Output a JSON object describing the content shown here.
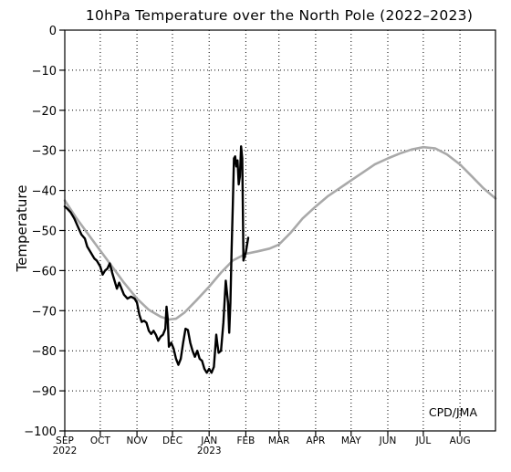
{
  "chart_data": {
    "type": "line",
    "title": "10hPa Temperature over the North Pole (2022–2023)",
    "ylabel": "Temperature",
    "xlabel": "",
    "credit": "CPD/JMA",
    "ylim": [
      -100,
      0
    ],
    "yticks": [
      0,
      -10,
      -20,
      -30,
      -40,
      -50,
      -60,
      -70,
      -80,
      -90,
      -100
    ],
    "ytick_labels": [
      "0",
      "−10",
      "−20",
      "−30",
      "−40",
      "−50",
      "−60",
      "−70",
      "−80",
      "−90",
      "−100"
    ],
    "xlim": [
      "2022-09-01",
      "2023-08-31"
    ],
    "x_ticks": [
      {
        "date": "2022-09-01",
        "label": "SEP",
        "sublabel": "2022"
      },
      {
        "date": "2022-10-01",
        "label": "OCT",
        "sublabel": ""
      },
      {
        "date": "2022-11-01",
        "label": "NOV",
        "sublabel": ""
      },
      {
        "date": "2022-12-01",
        "label": "DEC",
        "sublabel": ""
      },
      {
        "date": "2023-01-01",
        "label": "JAN",
        "sublabel": "2023"
      },
      {
        "date": "2023-02-01",
        "label": "FEB",
        "sublabel": ""
      },
      {
        "date": "2023-03-01",
        "label": "MAR",
        "sublabel": ""
      },
      {
        "date": "2023-04-01",
        "label": "APR",
        "sublabel": ""
      },
      {
        "date": "2023-05-01",
        "label": "MAY",
        "sublabel": ""
      },
      {
        "date": "2023-06-01",
        "label": "JUN",
        "sublabel": ""
      },
      {
        "date": "2023-07-01",
        "label": "JUL",
        "sublabel": ""
      },
      {
        "date": "2023-08-01",
        "label": "AUG",
        "sublabel": ""
      }
    ],
    "grid": true,
    "series": [
      {
        "color": "#a9a9a9",
        "points": [
          [
            "2022-09-01",
            -42.5
          ],
          [
            "2022-09-11",
            -47
          ],
          [
            "2022-09-21",
            -51
          ],
          [
            "2022-10-01",
            -55
          ],
          [
            "2022-10-11",
            -59
          ],
          [
            "2022-10-21",
            -63
          ],
          [
            "2022-11-01",
            -67
          ],
          [
            "2022-11-11",
            -69.8
          ],
          [
            "2022-11-21",
            -71.5
          ],
          [
            "2022-11-28",
            -72.2
          ],
          [
            "2022-12-04",
            -72
          ],
          [
            "2022-12-11",
            -70.5
          ],
          [
            "2022-12-21",
            -67.5
          ],
          [
            "2023-01-01",
            -64
          ],
          [
            "2023-01-11",
            -60.5
          ],
          [
            "2023-01-21",
            -57.5
          ],
          [
            "2023-02-01",
            -55.8
          ],
          [
            "2023-02-11",
            -55.2
          ],
          [
            "2023-02-21",
            -54.5
          ],
          [
            "2023-03-01",
            -53.5
          ],
          [
            "2023-03-11",
            -50.5
          ],
          [
            "2023-03-21",
            -47
          ],
          [
            "2023-04-01",
            -44
          ],
          [
            "2023-04-11",
            -41.5
          ],
          [
            "2023-04-21",
            -39.5
          ],
          [
            "2023-05-01",
            -37.5
          ],
          [
            "2023-05-11",
            -35.5
          ],
          [
            "2023-05-21",
            -33.5
          ],
          [
            "2023-06-01",
            -32
          ],
          [
            "2023-06-11",
            -30.8
          ],
          [
            "2023-06-21",
            -29.8
          ],
          [
            "2023-07-01",
            -29.2
          ],
          [
            "2023-07-11",
            -29.5
          ],
          [
            "2023-07-21",
            -31
          ],
          [
            "2023-08-01",
            -33.5
          ],
          [
            "2023-08-11",
            -36.5
          ],
          [
            "2023-08-21",
            -39.5
          ],
          [
            "2023-08-31",
            -42
          ]
        ]
      },
      {
        "color": "#000000",
        "points": [
          [
            "2022-09-01",
            -44
          ],
          [
            "2022-09-03",
            -44.5
          ],
          [
            "2022-09-06",
            -45.5
          ],
          [
            "2022-09-09",
            -47
          ],
          [
            "2022-09-12",
            -49
          ],
          [
            "2022-09-15",
            -51
          ],
          [
            "2022-09-18",
            -52
          ],
          [
            "2022-09-20",
            -54
          ],
          [
            "2022-09-23",
            -55.5
          ],
          [
            "2022-09-26",
            -57
          ],
          [
            "2022-09-28",
            -57.5
          ],
          [
            "2022-10-01",
            -59
          ],
          [
            "2022-10-03",
            -61
          ],
          [
            "2022-10-05",
            -60
          ],
          [
            "2022-10-07",
            -59.5
          ],
          [
            "2022-10-09",
            -58.2
          ],
          [
            "2022-10-11",
            -60.5
          ],
          [
            "2022-10-13",
            -62.5
          ],
          [
            "2022-10-15",
            -64.5
          ],
          [
            "2022-10-17",
            -63
          ],
          [
            "2022-10-19",
            -64.5
          ],
          [
            "2022-10-21",
            -66
          ],
          [
            "2022-10-24",
            -67
          ],
          [
            "2022-10-27",
            -66.5
          ],
          [
            "2022-10-30",
            -67
          ],
          [
            "2022-11-01",
            -68
          ],
          [
            "2022-11-03",
            -71
          ],
          [
            "2022-11-05",
            -72.8
          ],
          [
            "2022-11-07",
            -72.5
          ],
          [
            "2022-11-09",
            -73
          ],
          [
            "2022-11-11",
            -75
          ],
          [
            "2022-11-13",
            -75.8
          ],
          [
            "2022-11-15",
            -75
          ],
          [
            "2022-11-17",
            -76
          ],
          [
            "2022-11-19",
            -77.5
          ],
          [
            "2022-11-21",
            -76.5
          ],
          [
            "2022-11-23",
            -76
          ],
          [
            "2022-11-25",
            -74.5
          ],
          [
            "2022-11-26",
            -69
          ],
          [
            "2022-11-27",
            -72
          ],
          [
            "2022-11-28",
            -79
          ],
          [
            "2022-11-30",
            -78
          ],
          [
            "2022-12-02",
            -79.5
          ],
          [
            "2022-12-04",
            -82
          ],
          [
            "2022-12-06",
            -83.5
          ],
          [
            "2022-12-08",
            -82
          ],
          [
            "2022-12-10",
            -78
          ],
          [
            "2022-12-12",
            -74.5
          ],
          [
            "2022-12-14",
            -74.8
          ],
          [
            "2022-12-16",
            -78
          ],
          [
            "2022-12-18",
            -80
          ],
          [
            "2022-12-20",
            -81.5
          ],
          [
            "2022-12-22",
            -80
          ],
          [
            "2022-12-24",
            -82
          ],
          [
            "2022-12-26",
            -82.5
          ],
          [
            "2022-12-28",
            -84.5
          ],
          [
            "2022-12-30",
            -85.5
          ],
          [
            "2023-01-01",
            -84.5
          ],
          [
            "2023-01-03",
            -85.5
          ],
          [
            "2023-01-05",
            -84
          ],
          [
            "2023-01-07",
            -76
          ],
          [
            "2023-01-08",
            -78.5
          ],
          [
            "2023-01-09",
            -80.5
          ],
          [
            "2023-01-11",
            -80
          ],
          [
            "2023-01-13",
            -73
          ],
          [
            "2023-01-15",
            -62.5
          ],
          [
            "2023-01-17",
            -68
          ],
          [
            "2023-01-18",
            -75.5
          ],
          [
            "2023-01-19",
            -68
          ],
          [
            "2023-01-20",
            -55
          ],
          [
            "2023-01-21",
            -44
          ],
          [
            "2023-01-22",
            -32
          ],
          [
            "2023-01-23",
            -31.5
          ],
          [
            "2023-01-24",
            -34
          ],
          [
            "2023-01-25",
            -32.5
          ],
          [
            "2023-01-26",
            -38.5
          ],
          [
            "2023-01-27",
            -36.5
          ],
          [
            "2023-01-28",
            -29
          ],
          [
            "2023-01-29",
            -32
          ],
          [
            "2023-01-30",
            -57.5
          ],
          [
            "2023-02-01",
            -55.5
          ],
          [
            "2023-02-03",
            -51.8
          ]
        ]
      }
    ]
  }
}
